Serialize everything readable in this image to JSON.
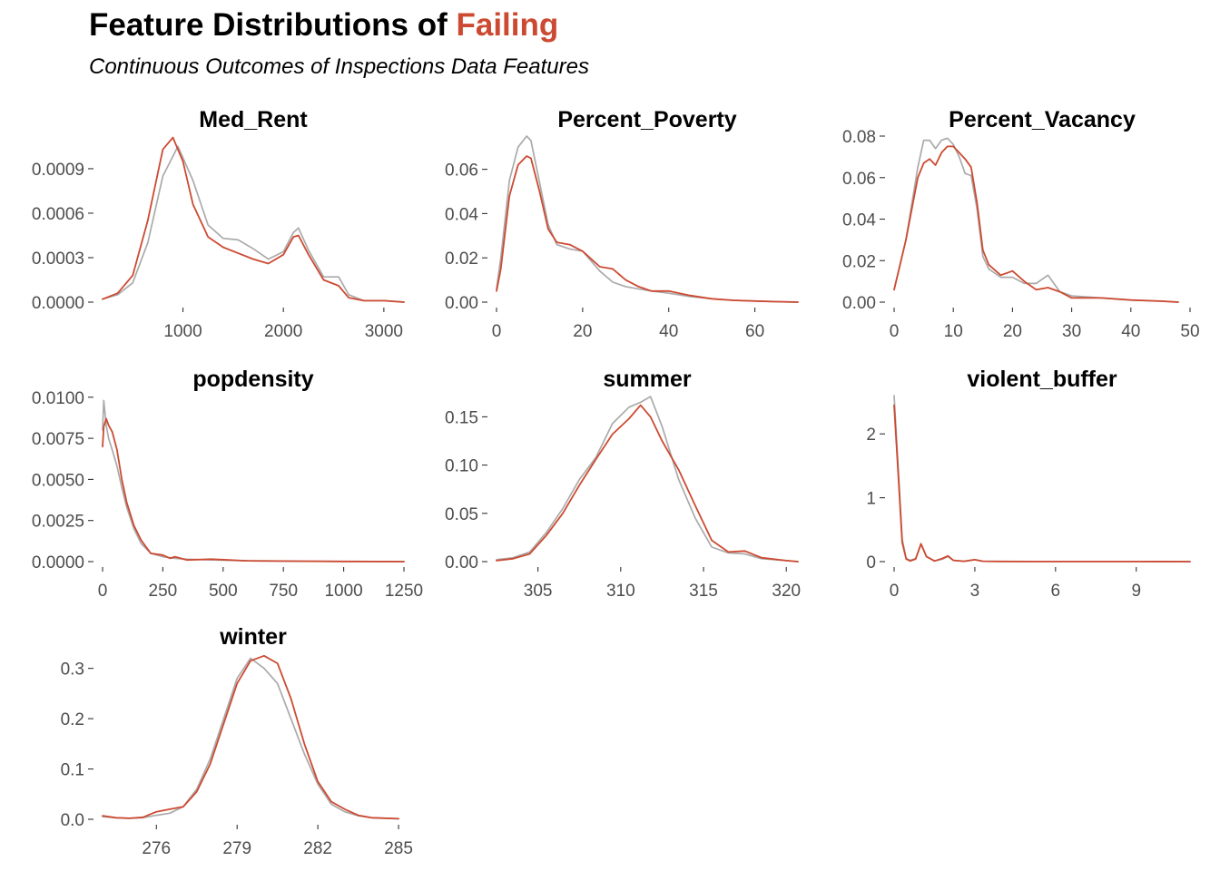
{
  "header": {
    "title_prefix": "Feature Distributions of ",
    "title_highlight": "Failing",
    "subtitle": "Continuous Outcomes of Inspections Data Features"
  },
  "colors": {
    "highlight": "#cc4a32",
    "other": "#aaaaaa"
  },
  "chart_data": [
    {
      "type": "area",
      "title": "Med_Rent",
      "xlim": [
        200,
        3200
      ],
      "ylim": [
        0,
        0.00112
      ],
      "xticks": [
        1000,
        2000,
        3000
      ],
      "yticks": [
        0.0,
        0.0003,
        0.0006,
        0.0009
      ],
      "yticklabels": [
        "0.0000",
        "0.0003",
        "0.0006",
        "0.0009"
      ],
      "series": [
        {
          "role": "other",
          "x": [
            200,
            350,
            500,
            650,
            800,
            950,
            1100,
            1250,
            1400,
            1550,
            1700,
            1850,
            2000,
            2100,
            2150,
            2250,
            2400,
            2550,
            2650,
            2800,
            3000,
            3200
          ],
          "y": [
            2e-05,
            5e-05,
            0.00013,
            0.0004,
            0.00085,
            0.00105,
            0.00082,
            0.00052,
            0.00043,
            0.00042,
            0.00036,
            0.00029,
            0.00034,
            0.00047,
            0.0005,
            0.00035,
            0.00017,
            0.00017,
            5e-05,
            1e-05,
            1e-05,
            0.0
          ]
        },
        {
          "role": "failing",
          "x": [
            200,
            350,
            500,
            650,
            800,
            900,
            1000,
            1100,
            1250,
            1400,
            1550,
            1700,
            1850,
            2000,
            2100,
            2150,
            2250,
            2400,
            2550,
            2650,
            2800,
            3000,
            3200
          ],
          "y": [
            2e-05,
            6e-05,
            0.00018,
            0.00055,
            0.00103,
            0.00111,
            0.00095,
            0.00066,
            0.00044,
            0.00037,
            0.00033,
            0.00029,
            0.00026,
            0.00032,
            0.00044,
            0.00045,
            0.00032,
            0.00015,
            0.00011,
            3e-05,
            1e-05,
            1e-05,
            0.0
          ]
        }
      ]
    },
    {
      "type": "area",
      "title": "Percent_Poverty",
      "xlim": [
        0,
        70
      ],
      "ylim": [
        0,
        0.075
      ],
      "xticks": [
        0,
        20,
        40,
        60
      ],
      "yticks": [
        0.0,
        0.02,
        0.04,
        0.06
      ],
      "yticklabels": [
        "0.00",
        "0.02",
        "0.04",
        "0.06"
      ],
      "series": [
        {
          "role": "other",
          "x": [
            0,
            1,
            3,
            5,
            7,
            8,
            10,
            12,
            14,
            17,
            20,
            24,
            27,
            30,
            33,
            36,
            40,
            45,
            50,
            55,
            60,
            65,
            70
          ],
          "y": [
            0.006,
            0.02,
            0.055,
            0.07,
            0.075,
            0.073,
            0.054,
            0.035,
            0.026,
            0.024,
            0.023,
            0.014,
            0.009,
            0.007,
            0.006,
            0.005,
            0.004,
            0.0025,
            0.0015,
            0.0008,
            0.0005,
            0.0002,
            0.0
          ]
        },
        {
          "role": "failing",
          "x": [
            0,
            1,
            3,
            5,
            7,
            8,
            10,
            12,
            14,
            17,
            20,
            24,
            27,
            30,
            33,
            36,
            40,
            45,
            50,
            55,
            60,
            65,
            70
          ],
          "y": [
            0.005,
            0.015,
            0.048,
            0.062,
            0.066,
            0.065,
            0.05,
            0.033,
            0.027,
            0.026,
            0.023,
            0.016,
            0.015,
            0.01,
            0.007,
            0.005,
            0.005,
            0.003,
            0.0015,
            0.0008,
            0.0005,
            0.0002,
            0.0
          ]
        }
      ]
    },
    {
      "type": "area",
      "title": "Percent_Vacancy",
      "xlim": [
        0,
        50
      ],
      "ylim": [
        0,
        0.08
      ],
      "xticks": [
        0,
        10,
        20,
        30,
        40,
        50
      ],
      "yticks": [
        0.0,
        0.02,
        0.04,
        0.06,
        0.08
      ],
      "yticklabels": [
        "0.00",
        "0.02",
        "0.04",
        "0.06",
        "0.08"
      ],
      "series": [
        {
          "role": "other",
          "x": [
            0,
            2,
            4,
            5,
            6,
            7,
            8,
            9,
            10,
            11,
            12,
            13,
            14,
            15,
            16,
            18,
            20,
            22,
            24,
            26,
            28,
            30,
            35,
            40,
            45,
            48
          ],
          "y": [
            0.006,
            0.03,
            0.065,
            0.078,
            0.078,
            0.074,
            0.078,
            0.079,
            0.076,
            0.07,
            0.062,
            0.061,
            0.045,
            0.022,
            0.016,
            0.012,
            0.012,
            0.009,
            0.009,
            0.013,
            0.005,
            0.003,
            0.002,
            0.001,
            0.0005,
            0.0
          ]
        },
        {
          "role": "failing",
          "x": [
            0,
            2,
            4,
            5,
            6,
            7,
            8,
            9,
            10,
            11,
            12,
            13,
            14,
            15,
            16,
            18,
            20,
            22,
            24,
            26,
            28,
            30,
            35,
            40,
            45,
            48
          ],
          "y": [
            0.006,
            0.03,
            0.06,
            0.067,
            0.069,
            0.066,
            0.072,
            0.075,
            0.075,
            0.072,
            0.069,
            0.065,
            0.048,
            0.025,
            0.018,
            0.013,
            0.015,
            0.01,
            0.006,
            0.007,
            0.005,
            0.002,
            0.002,
            0.001,
            0.0005,
            0.0
          ]
        }
      ]
    },
    {
      "type": "area",
      "title": "popdensity",
      "xlim": [
        0,
        1250
      ],
      "ylim": [
        0,
        0.0101
      ],
      "xticks": [
        0,
        250,
        500,
        750,
        1000,
        1250
      ],
      "yticks": [
        0.0,
        0.0025,
        0.005,
        0.0075,
        0.01
      ],
      "yticklabels": [
        "0.0000",
        "0.0025",
        "0.0050",
        "0.0075",
        "0.0100"
      ],
      "series": [
        {
          "role": "other",
          "x": [
            0,
            5,
            15,
            25,
            40,
            60,
            80,
            100,
            130,
            160,
            200,
            250,
            300,
            350,
            450,
            600,
            800,
            1000,
            1250
          ],
          "y": [
            0.008,
            0.0098,
            0.0083,
            0.0075,
            0.0068,
            0.0058,
            0.0045,
            0.0033,
            0.002,
            0.0011,
            0.0005,
            0.0003,
            0.0002,
            0.00015,
            0.0001,
            5e-05,
            3e-05,
            1e-05,
            0.0
          ]
        },
        {
          "role": "failing",
          "x": [
            0,
            5,
            15,
            25,
            40,
            60,
            80,
            100,
            130,
            160,
            200,
            250,
            280,
            300,
            350,
            450,
            600,
            800,
            1000,
            1250
          ],
          "y": [
            0.007,
            0.0082,
            0.0087,
            0.0083,
            0.0079,
            0.0068,
            0.005,
            0.0036,
            0.0022,
            0.0013,
            0.0005,
            0.0004,
            0.0002,
            0.0003,
            0.0001,
            0.00015,
            5e-05,
            3e-05,
            1e-05,
            0.0
          ]
        }
      ]
    },
    {
      "type": "area",
      "title": "summer",
      "xlim": [
        302.5,
        320.7
      ],
      "ylim": [
        0,
        0.172
      ],
      "xticks": [
        305,
        310,
        315,
        320
      ],
      "yticks": [
        0.0,
        0.05,
        0.1,
        0.15
      ],
      "yticklabels": [
        "0.00",
        "0.05",
        "0.10",
        "0.15"
      ],
      "series": [
        {
          "role": "other",
          "x": [
            302.5,
            303.5,
            304.5,
            305.5,
            306.5,
            307.5,
            308.5,
            309.5,
            310.5,
            311.2,
            311.8,
            312.5,
            313.5,
            314.5,
            315.5,
            316.5,
            317.5,
            318.5,
            320,
            320.7
          ],
          "y": [
            0.002,
            0.004,
            0.01,
            0.03,
            0.055,
            0.085,
            0.108,
            0.143,
            0.16,
            0.165,
            0.171,
            0.14,
            0.085,
            0.045,
            0.015,
            0.009,
            0.008,
            0.003,
            0.001,
            0.0
          ]
        },
        {
          "role": "failing",
          "x": [
            302.5,
            303.5,
            304.5,
            305.5,
            306.5,
            307.5,
            308.5,
            309.5,
            310.5,
            311.2,
            311.8,
            312.5,
            313.5,
            314.5,
            315.5,
            316.5,
            317.5,
            318.5,
            320,
            320.7
          ],
          "y": [
            0.001,
            0.003,
            0.008,
            0.027,
            0.05,
            0.079,
            0.106,
            0.132,
            0.148,
            0.162,
            0.15,
            0.125,
            0.095,
            0.058,
            0.022,
            0.01,
            0.011,
            0.004,
            0.001,
            0.0
          ]
        }
      ]
    },
    {
      "type": "area",
      "title": "violent_buffer",
      "xlim": [
        0,
        11
      ],
      "ylim": [
        0,
        2.6
      ],
      "xticks": [
        0,
        3,
        6,
        9
      ],
      "yticks": [
        0,
        1,
        2
      ],
      "yticklabels": [
        "0",
        "1",
        "2"
      ],
      "series": [
        {
          "role": "other",
          "x": [
            0,
            0.15,
            0.3,
            0.45,
            0.6,
            0.8,
            1.0,
            1.2,
            1.5,
            1.8,
            2.0,
            2.2,
            2.6,
            3.0,
            3.3,
            4.0,
            5,
            7,
            9,
            11
          ],
          "y": [
            2.6,
            1.5,
            0.35,
            0.05,
            0.02,
            0.05,
            0.27,
            0.08,
            0.01,
            0.04,
            0.08,
            0.02,
            0.005,
            0.03,
            0.005,
            0.003,
            0.002,
            0.001,
            0.001,
            0.0
          ]
        },
        {
          "role": "failing",
          "x": [
            0,
            0.15,
            0.3,
            0.45,
            0.6,
            0.8,
            1.0,
            1.2,
            1.5,
            1.8,
            2.0,
            2.2,
            2.6,
            3.0,
            3.3,
            4.0,
            5,
            7,
            9,
            11
          ],
          "y": [
            2.45,
            1.4,
            0.3,
            0.04,
            0.01,
            0.04,
            0.28,
            0.08,
            0.01,
            0.05,
            0.09,
            0.02,
            0.005,
            0.03,
            0.005,
            0.003,
            0.002,
            0.001,
            0.001,
            0.0
          ]
        }
      ]
    },
    {
      "type": "area",
      "title": "winter",
      "xlim": [
        274,
        285.2
      ],
      "ylim": [
        0,
        0.33
      ],
      "xticks": [
        276,
        279,
        282,
        285
      ],
      "yticks": [
        0.0,
        0.1,
        0.2,
        0.3
      ],
      "yticklabels": [
        "0.0",
        "0.1",
        "0.2",
        "0.3"
      ],
      "series": [
        {
          "role": "other",
          "x": [
            274,
            274.5,
            275,
            275.5,
            276,
            276.5,
            277,
            277.5,
            278,
            278.5,
            279,
            279.5,
            280,
            280.5,
            281,
            281.5,
            282,
            282.5,
            283,
            283.5,
            284,
            285
          ],
          "y": [
            0.005,
            0.003,
            0.002,
            0.003,
            0.008,
            0.012,
            0.025,
            0.06,
            0.12,
            0.2,
            0.28,
            0.32,
            0.3,
            0.27,
            0.2,
            0.13,
            0.07,
            0.03,
            0.015,
            0.007,
            0.003,
            0.001
          ]
        },
        {
          "role": "failing",
          "x": [
            274,
            274.5,
            275,
            275.5,
            276,
            276.5,
            277,
            277.5,
            278,
            278.5,
            279,
            279.5,
            280,
            280.5,
            281,
            281.5,
            282,
            282.5,
            283,
            283.5,
            284,
            285
          ],
          "y": [
            0.007,
            0.003,
            0.002,
            0.004,
            0.015,
            0.02,
            0.025,
            0.055,
            0.11,
            0.19,
            0.27,
            0.315,
            0.325,
            0.31,
            0.24,
            0.15,
            0.075,
            0.035,
            0.02,
            0.008,
            0.003,
            0.001
          ]
        }
      ]
    }
  ]
}
